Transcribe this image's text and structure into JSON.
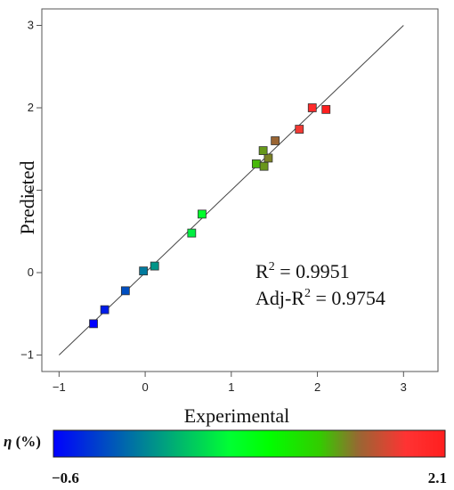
{
  "chart_data": {
    "type": "scatter",
    "xlabel": "Experimental",
    "ylabel": "Predicted",
    "xlim": [
      -1.2,
      3.4
    ],
    "ylim": [
      -1.2,
      3.2
    ],
    "x_ticks": [
      -1,
      0,
      1,
      2,
      3
    ],
    "y_ticks": [
      -1,
      0,
      1,
      2,
      3
    ],
    "x_tick_labels": [
      "−1",
      "0",
      "1",
      "2",
      "3"
    ],
    "y_tick_labels": [
      "−1",
      "0",
      "1",
      "2",
      "3"
    ],
    "reference_line": [
      [
        -1,
        -1
      ],
      [
        3,
        3
      ]
    ],
    "points": [
      {
        "x": -0.6,
        "y": -0.62
      },
      {
        "x": -0.47,
        "y": -0.45
      },
      {
        "x": -0.23,
        "y": -0.22
      },
      {
        "x": -0.02,
        "y": 0.02
      },
      {
        "x": 0.11,
        "y": 0.08
      },
      {
        "x": 0.54,
        "y": 0.48
      },
      {
        "x": 0.66,
        "y": 0.71
      },
      {
        "x": 1.29,
        "y": 1.32
      },
      {
        "x": 1.38,
        "y": 1.29
      },
      {
        "x": 1.43,
        "y": 1.39
      },
      {
        "x": 1.37,
        "y": 1.48
      },
      {
        "x": 1.51,
        "y": 1.6
      },
      {
        "x": 1.79,
        "y": 1.74
      },
      {
        "x": 1.94,
        "y": 2.0
      },
      {
        "x": 2.1,
        "y": 1.98
      }
    ],
    "annotations": {
      "r2_prefix": "R",
      "r2_sup": "2",
      "r2_value": " = 0.9951",
      "adj_prefix": "Adj-R",
      "adj_sup": "2",
      "adj_value": " = 0.9754"
    },
    "colorbar": {
      "title": "η (%)",
      "min_label": "−0.6",
      "max_label": "2.1",
      "min": -0.6,
      "max": 2.1,
      "stops": [
        {
          "offset": 0.0,
          "color": "#0000ff"
        },
        {
          "offset": 0.45,
          "color": "#00ff33"
        },
        {
          "offset": 0.55,
          "color": "#00ff00"
        },
        {
          "offset": 0.68,
          "color": "#33cc00"
        },
        {
          "offset": 0.78,
          "color": "#996633"
        },
        {
          "offset": 0.9,
          "color": "#ff3333"
        },
        {
          "offset": 1.0,
          "color": "#ff1f1f"
        }
      ]
    },
    "grid": false
  }
}
